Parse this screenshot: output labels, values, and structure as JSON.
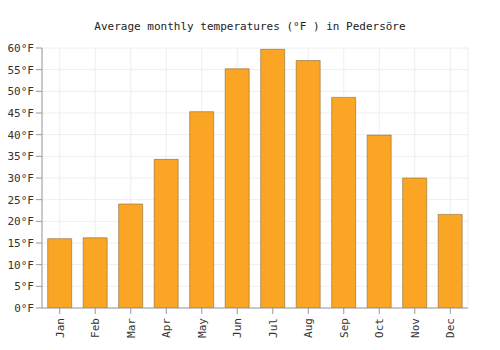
{
  "chart_data": {
    "type": "bar",
    "title": "Average monthly temperatures (°F ) in Pedersöre",
    "categories": [
      "Jan",
      "Feb",
      "Mar",
      "Apr",
      "May",
      "Jun",
      "Jul",
      "Aug",
      "Sep",
      "Oct",
      "Nov",
      "Dec"
    ],
    "values": [
      16,
      16.2,
      24,
      34.3,
      45.3,
      55.2,
      59.7,
      57.1,
      48.6,
      39.9,
      30,
      21.6
    ],
    "color": "#fba524",
    "ylim": [
      0,
      60
    ],
    "yticks": [
      {
        "value": 0,
        "label": "0°F"
      },
      {
        "value": 5,
        "label": "5°F"
      },
      {
        "value": 10,
        "label": "10°F"
      },
      {
        "value": 15,
        "label": "15°F"
      },
      {
        "value": 20,
        "label": "20°F"
      },
      {
        "value": 25,
        "label": "25°F"
      },
      {
        "value": 30,
        "label": "30°F"
      },
      {
        "value": 35,
        "label": "35°F"
      },
      {
        "value": 40,
        "label": "40°F"
      },
      {
        "value": 45,
        "label": "45°F"
      },
      {
        "value": 50,
        "label": "50°F"
      },
      {
        "value": 55,
        "label": "55°F"
      },
      {
        "value": 60,
        "label": "60°F"
      }
    ],
    "grid": true
  }
}
